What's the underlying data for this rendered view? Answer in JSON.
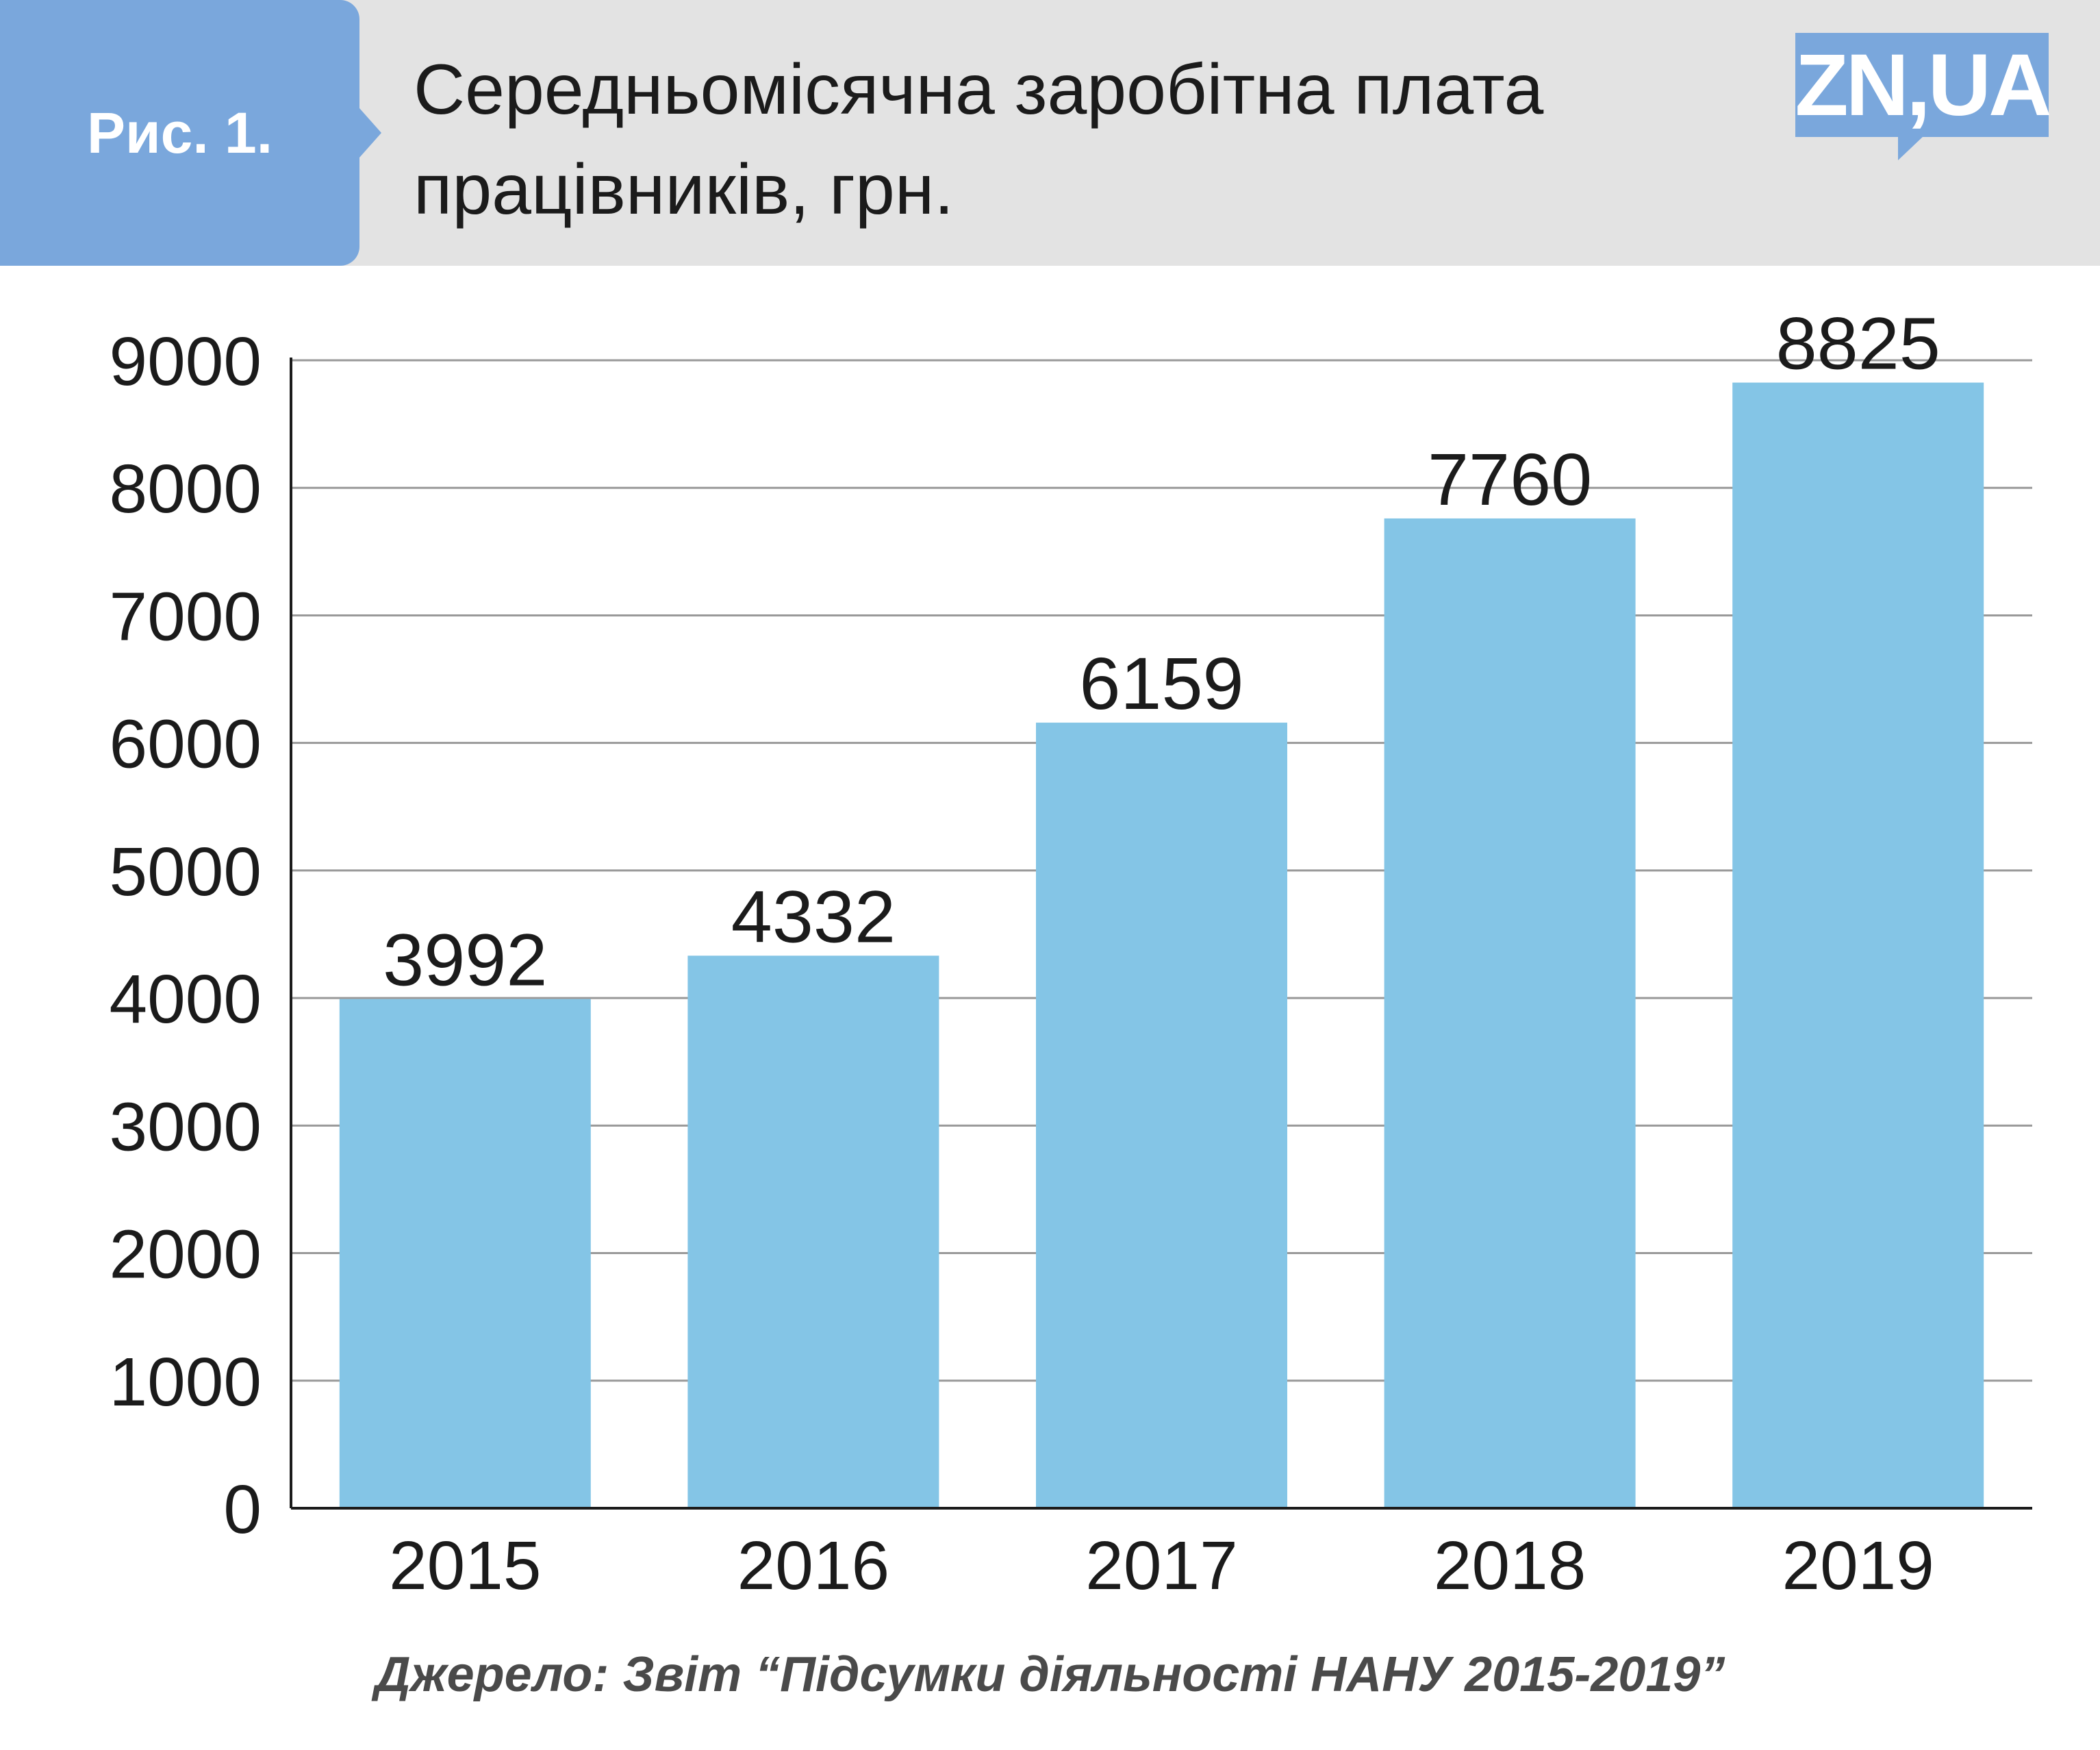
{
  "header": {
    "figure_label": "Рис. 1.",
    "title_line1": "Середньомісячна заробітна плата",
    "title_line2": "працівників, грн.",
    "logo_text": "ZN,UA"
  },
  "colors": {
    "bar": "#84c5e6",
    "header_bg": "#e3e3e3",
    "accent": "#7aa7dc",
    "grid": "#999999",
    "axis": "#1b1b1b"
  },
  "chart_data": {
    "type": "bar",
    "categories": [
      "2015",
      "2016",
      "2017",
      "2018",
      "2019"
    ],
    "values": [
      3992,
      4332,
      6159,
      7760,
      8825
    ],
    "ylim": [
      0,
      9000
    ],
    "yticks": [
      0,
      1000,
      2000,
      3000,
      4000,
      5000,
      6000,
      7000,
      8000,
      9000
    ],
    "grid": true,
    "data_labels": true
  },
  "source": "Джерело: Звіт “Підсумки діяльності НАНУ 2015-2019”"
}
